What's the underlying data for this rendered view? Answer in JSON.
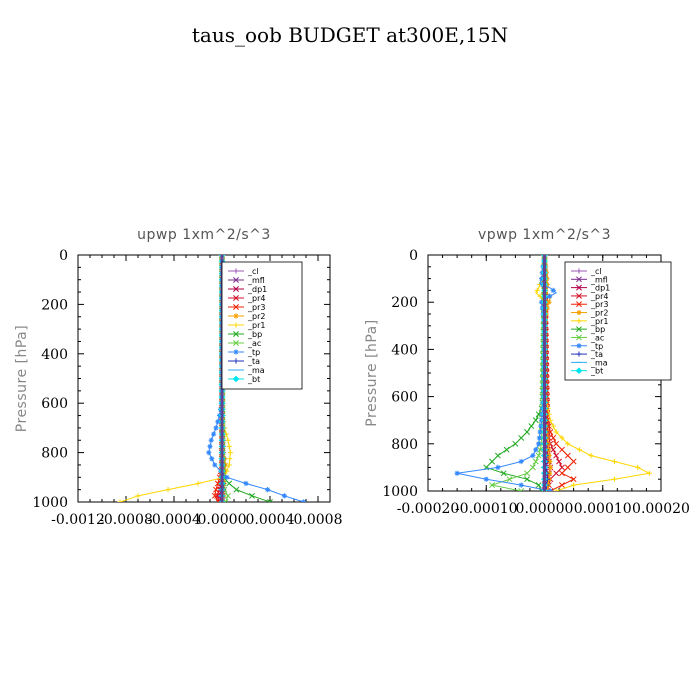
{
  "figure": {
    "title": "taus_oob  BUDGET at300E,15N"
  },
  "legend_entries": [
    {
      "label": "_cl",
      "color": "#9b59b6",
      "marker": "+"
    },
    {
      "label": "_mfl",
      "color": "#7b2d8e",
      "marker": "x"
    },
    {
      "label": "_dp1",
      "color": "#b0004a",
      "marker": "x"
    },
    {
      "label": "_pr4",
      "color": "#d0102a",
      "marker": "x"
    },
    {
      "label": "_pr3",
      "color": "#ee2200",
      "marker": "x"
    },
    {
      "label": "_pr2",
      "color": "#f5a000",
      "marker": "*"
    },
    {
      "label": "_pr1",
      "color": "#ffd700",
      "marker": "+"
    },
    {
      "label": "_bp",
      "color": "#22aa22",
      "marker": "x"
    },
    {
      "label": "_ac",
      "color": "#66cc44",
      "marker": "x"
    },
    {
      "label": "_tp",
      "color": "#3388ff",
      "marker": "*"
    },
    {
      "label": "_ta",
      "color": "#2233bb",
      "marker": "+"
    },
    {
      "label": "_ma",
      "color": "#33aaee",
      "marker": "-"
    },
    {
      "label": "_bt",
      "color": "#00e5ee",
      "marker": "d"
    }
  ],
  "chart_data": [
    {
      "type": "line",
      "title": "upwp   1xm^2/s^3",
      "xlabel": "",
      "ylabel": "Pressure [hPa]",
      "xlim": [
        -0.0012,
        0.0009
      ],
      "ylim": [
        1000,
        0
      ],
      "xticks": [
        -0.0012,
        -0.0008,
        -0.0004,
        0.0,
        0.0004,
        0.0008
      ],
      "xtick_labels": [
        "-0.0012",
        "-0.0008",
        "-0.0004",
        "0.0000",
        "0.0004",
        "0.0008"
      ],
      "yticks": [
        0,
        200,
        400,
        600,
        800,
        1000
      ],
      "ytick_labels": [
        "0",
        "200",
        "400",
        "600",
        "800",
        "1000"
      ],
      "legend": "top-right",
      "series": [
        {
          "name": "_cl",
          "y": [
            0,
            950,
            1000
          ],
          "x": [
            0,
            0,
            0
          ]
        },
        {
          "name": "_mfl",
          "y": [
            0,
            950,
            1000
          ],
          "x": [
            0,
            5e-06,
            0
          ]
        },
        {
          "name": "_dp1",
          "y": [
            0,
            900,
            950,
            975,
            1000
          ],
          "x": [
            0,
            0,
            -1e-05,
            -2e-05,
            -1e-05
          ]
        },
        {
          "name": "_pr4",
          "y": [
            0,
            900,
            950,
            975,
            1000
          ],
          "x": [
            0,
            0,
            -2e-05,
            -4e-05,
            -2e-05
          ]
        },
        {
          "name": "_pr3",
          "y": [
            0,
            850,
            900,
            950,
            975,
            1000
          ],
          "x": [
            0,
            0,
            -2e-05,
            -5e-05,
            -6e-05,
            -3e-05
          ]
        },
        {
          "name": "_pr2",
          "y": [
            0,
            700,
            800,
            850,
            900,
            1000
          ],
          "x": [
            0,
            5e-06,
            1e-05,
            3e-05,
            2e-05,
            1e-05
          ]
        },
        {
          "name": "_pr1",
          "y": [
            0,
            650,
            700,
            750,
            800,
            850,
            900,
            925,
            950,
            975,
            1000
          ],
          "x": [
            0,
            5e-06,
            2e-05,
            5e-05,
            7e-05,
            6e-05,
            2e-05,
            -0.0002,
            -0.00045,
            -0.0007,
            -0.00085
          ]
        },
        {
          "name": "_bp",
          "y": [
            0,
            850,
            900,
            925,
            950,
            975,
            1000
          ],
          "x": [
            0,
            5e-06,
            1e-05,
            6e-05,
            0.00012,
            0.00025,
            0.0004
          ]
        },
        {
          "name": "_ac",
          "y": [
            0,
            900,
            950,
            975,
            1000
          ],
          "x": [
            0,
            5e-06,
            2e-05,
            5e-05,
            3e-05
          ]
        },
        {
          "name": "_tp",
          "y": [
            0,
            600,
            650,
            700,
            750,
            800,
            850,
            900,
            925,
            950,
            975,
            1000
          ],
          "x": [
            0,
            -5e-06,
            -2e-05,
            -5e-05,
            -9e-05,
            -0.00011,
            -6e-05,
            4e-05,
            0.0002,
            0.00038,
            0.00052,
            0.00068
          ]
        },
        {
          "name": "_ta",
          "y": [
            0,
            950,
            1000
          ],
          "x": [
            0,
            1e-05,
            5e-06
          ]
        },
        {
          "name": "_ma",
          "y": [
            0,
            950,
            1000
          ],
          "x": [
            0,
            -5e-06,
            0
          ]
        },
        {
          "name": "_bt",
          "y": [
            0,
            950,
            1000
          ],
          "x": [
            0,
            0,
            0
          ]
        }
      ]
    },
    {
      "type": "line",
      "title": "vpwp   1xm^2/s^3",
      "xlabel": "",
      "ylabel": "Pressure [hPa]",
      "xlim": [
        -0.0002,
        0.0002
      ],
      "ylim": [
        1000,
        0
      ],
      "xticks": [
        -0.0002,
        -0.0001,
        0.0,
        0.0001,
        0.0002
      ],
      "xtick_labels": [
        "-0.00020",
        "-0.00010",
        "0.00000",
        "0.00010",
        "0.00020"
      ],
      "yticks": [
        0,
        200,
        400,
        600,
        800,
        1000
      ],
      "ytick_labels": [
        "0",
        "200",
        "400",
        "600",
        "800",
        "1000"
      ],
      "legend": "top-right",
      "series": [
        {
          "name": "_cl",
          "y": [
            0,
            900,
            1000
          ],
          "x": [
            0,
            0,
            0
          ]
        },
        {
          "name": "_mfl",
          "y": [
            0,
            900,
            1000
          ],
          "x": [
            0,
            2e-06,
            0
          ]
        },
        {
          "name": "_dp1",
          "y": [
            0,
            850,
            900,
            950,
            1000
          ],
          "x": [
            0,
            5e-06,
            1e-05,
            5e-06,
            0
          ]
        },
        {
          "name": "_pr4",
          "y": [
            0,
            750,
            800,
            850,
            900,
            925,
            950,
            1000
          ],
          "x": [
            0,
            5e-06,
            1e-05,
            2e-05,
            3e-05,
            2e-05,
            1e-05,
            5e-06
          ]
        },
        {
          "name": "_pr3",
          "y": [
            0,
            700,
            750,
            800,
            850,
            875,
            900,
            925,
            950,
            975,
            1000
          ],
          "x": [
            0,
            5e-06,
            1e-05,
            2e-05,
            4e-05,
            5e-05,
            4e-05,
            3e-05,
            5e-05,
            3e-05,
            1e-05
          ]
        },
        {
          "name": "_pr2",
          "y": [
            0,
            120,
            150,
            180,
            220,
            300,
            700,
            900,
            1000
          ],
          "x": [
            0,
            5e-06,
            2e-06,
            1e-05,
            5e-06,
            0,
            2e-06,
            1e-05,
            5e-06
          ]
        },
        {
          "name": "_pr1",
          "y": [
            0,
            100,
            140,
            160,
            180,
            200,
            600,
            700,
            750,
            800,
            850,
            875,
            900,
            925,
            950,
            975,
            1000
          ],
          "x": [
            0,
            -5e-06,
            -1e-05,
            -1.5e-05,
            -5e-06,
            0,
            2e-06,
            1e-05,
            2e-05,
            4e-05,
            8e-05,
            0.00012,
            0.00016,
            0.00018,
            0.00012,
            5e-05,
            2e-05
          ]
        },
        {
          "name": "_bp",
          "y": [
            0,
            600,
            650,
            700,
            750,
            800,
            850,
            900,
            925,
            950,
            975,
            1000
          ],
          "x": [
            0,
            -2e-06,
            -5e-06,
            -1.5e-05,
            -3e-05,
            -5e-05,
            -8e-05,
            -0.0001,
            -7e-05,
            -3e-05,
            -1e-05,
            -5e-06
          ]
        },
        {
          "name": "_ac",
          "y": [
            0,
            800,
            850,
            900,
            925,
            950,
            975,
            1000
          ],
          "x": [
            0,
            -5e-06,
            -1e-05,
            -2e-05,
            -3e-05,
            -6e-05,
            -9e-05,
            -4e-05
          ]
        },
        {
          "name": "_tp",
          "y": [
            0,
            100,
            120,
            140,
            160,
            180,
            200,
            300,
            600,
            700,
            800,
            850,
            875,
            900,
            925,
            950,
            975,
            1000
          ],
          "x": [
            0,
            -5e-06,
            -8e-06,
            1e-05,
            2e-05,
            5e-06,
            -5e-06,
            0,
            -2e-06,
            -5e-06,
            -1e-05,
            -2e-05,
            -4e-05,
            -8e-05,
            -0.00015,
            -0.0001,
            -4e-05,
            1e-05
          ]
        },
        {
          "name": "_ta",
          "y": [
            0,
            900,
            950,
            1000
          ],
          "x": [
            0,
            3e-06,
            5e-06,
            2e-06
          ]
        },
        {
          "name": "_ma",
          "y": [
            0,
            900,
            1000
          ],
          "x": [
            0,
            -2e-06,
            0
          ]
        },
        {
          "name": "_bt",
          "y": [
            0,
            900,
            1000
          ],
          "x": [
            0,
            0,
            0
          ]
        }
      ]
    }
  ]
}
